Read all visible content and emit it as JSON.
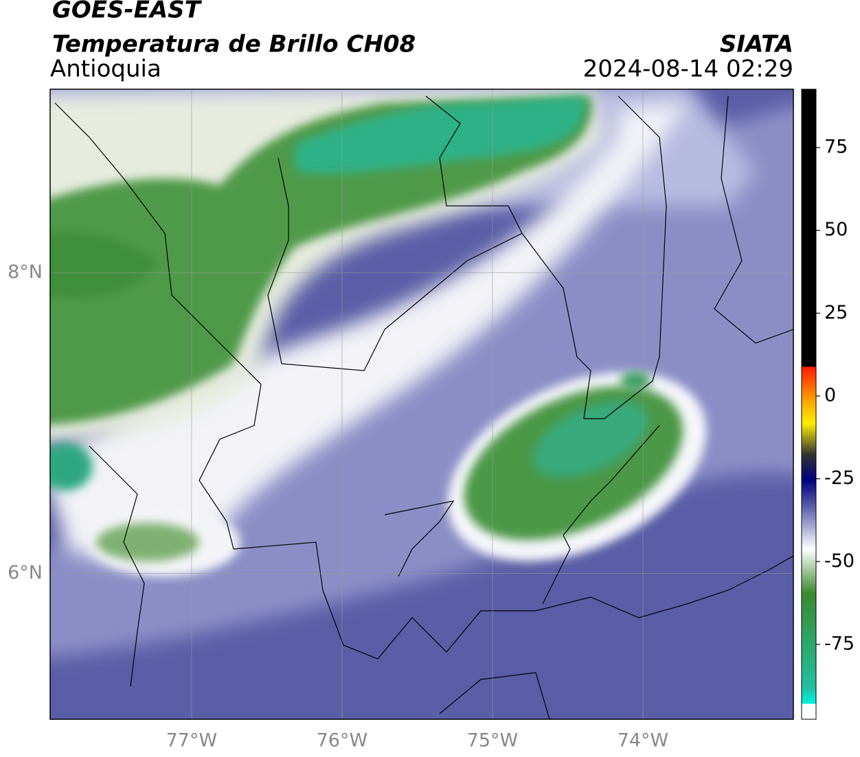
{
  "header": {
    "title": "GOES-EAST",
    "subtitle": "Temperatura de Brillo CH08",
    "region": "Antioquia",
    "source": "SIATA",
    "datetime": "2024-08-14 02:29"
  },
  "map": {
    "xlim": [
      -77.94,
      -73.0
    ],
    "ylim": [
      5.03,
      9.22
    ],
    "xticks": [
      {
        "value": -77,
        "label": "77°W"
      },
      {
        "value": -76,
        "label": "76°W"
      },
      {
        "value": -75,
        "label": "75°W"
      },
      {
        "value": -74,
        "label": "74°W"
      }
    ],
    "yticks": [
      {
        "value": 8,
        "label": "8°N"
      },
      {
        "value": 6,
        "label": "6°N"
      }
    ],
    "grid": true
  },
  "colorbar": {
    "ylim": [
      -97.6,
      92.6
    ],
    "yticks": [
      75,
      50,
      25,
      0,
      -25,
      -50,
      -75
    ]
  }
}
